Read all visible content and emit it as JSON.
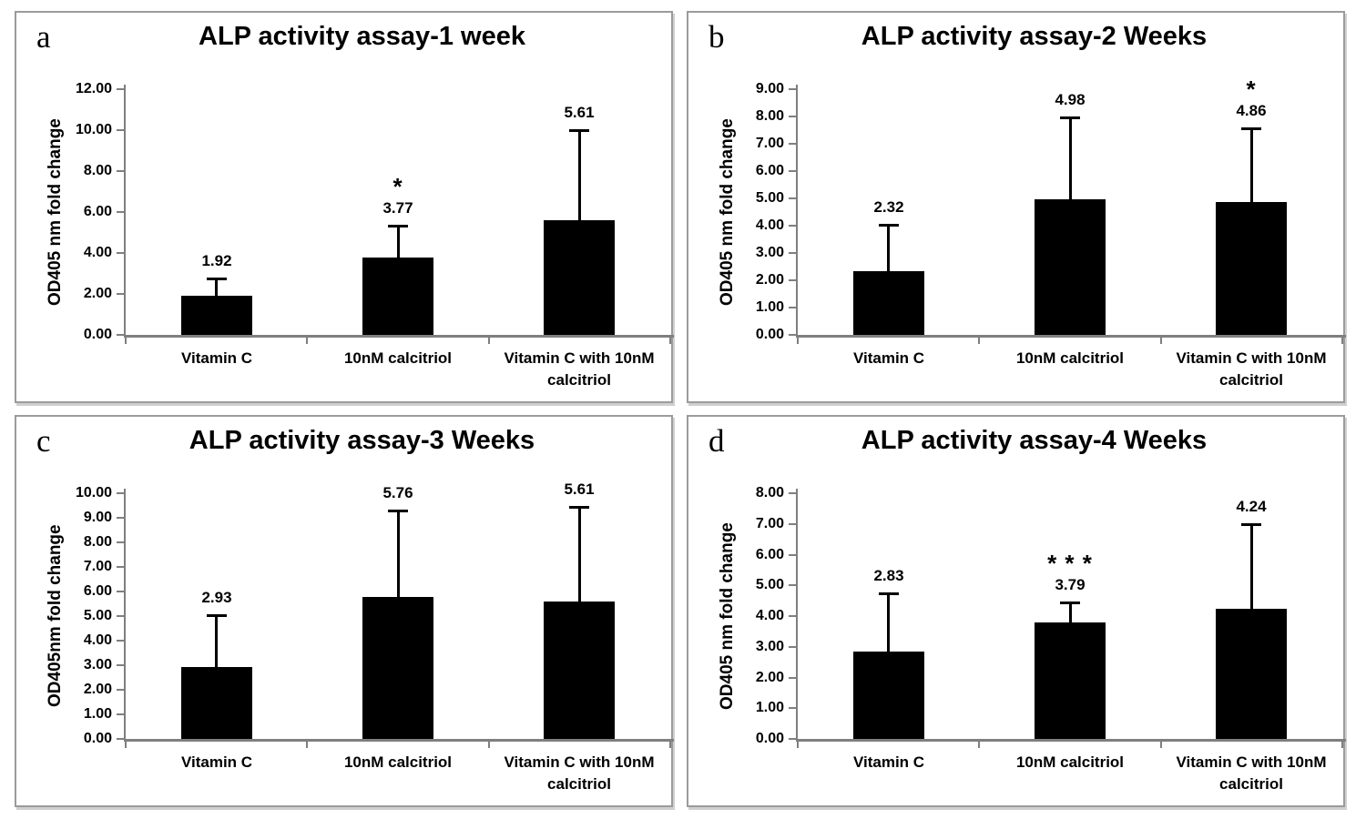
{
  "figure": {
    "background": "#ffffff",
    "bar_color": "#000000",
    "axis_color": "#7f7f7f",
    "text_color": "#000000",
    "panel_border_color": "#9b9b9b",
    "panel_shadow_color": "#cfcfcf"
  },
  "chart_data": [
    {
      "type": "bar",
      "panel_letter": "a",
      "title": "ALP activity assay-1 week",
      "xlabel": "",
      "ylabel": "OD405 nm fold change",
      "categories": [
        "Vitamin C",
        "10nM calcitriol",
        "Vitamin C with 10nM calcitriol"
      ],
      "values": [
        1.92,
        3.77,
        5.61
      ],
      "error_up": [
        0.85,
        1.55,
        4.4
      ],
      "significance": [
        "",
        "*",
        ""
      ],
      "ylim": [
        0,
        12
      ],
      "ytick_step": 2,
      "ytick_format": "0.00",
      "grid": false,
      "legend": "none"
    },
    {
      "type": "bar",
      "panel_letter": "b",
      "title": "ALP activity assay-2 Weeks",
      "xlabel": "",
      "ylabel": "OD405 nm fold change",
      "categories": [
        "Vitamin C",
        "10nM calcitriol",
        "Vitamin C with 10nM calcitriol"
      ],
      "values": [
        2.32,
        4.98,
        4.86
      ],
      "error_up": [
        1.7,
        3.0,
        2.7
      ],
      "significance": [
        "",
        "",
        "*"
      ],
      "ylim": [
        0,
        9
      ],
      "ytick_step": 1,
      "ytick_format": "0.00",
      "grid": false,
      "legend": "none"
    },
    {
      "type": "bar",
      "panel_letter": "c",
      "title": "ALP activity assay-3 Weeks",
      "xlabel": "",
      "ylabel": "OD405nm fold change",
      "categories": [
        "Vitamin C",
        "10nM calcitriol",
        "Vitamin C with 10nM calcitriol"
      ],
      "values": [
        2.93,
        5.76,
        5.61
      ],
      "error_up": [
        2.1,
        3.55,
        3.85
      ],
      "significance": [
        "",
        "",
        ""
      ],
      "ylim": [
        0,
        10
      ],
      "ytick_step": 1,
      "ytick_format": "0.00",
      "grid": false,
      "legend": "none"
    },
    {
      "type": "bar",
      "panel_letter": "d",
      "title": "ALP activity assay-4 Weeks",
      "xlabel": "",
      "ylabel": "OD405 nm fold change",
      "categories": [
        "Vitamin C",
        "10nM calcitriol",
        "Vitamin C with 10nM calcitriol"
      ],
      "values": [
        2.83,
        3.79,
        4.24
      ],
      "error_up": [
        1.9,
        0.65,
        2.75
      ],
      "significance": [
        "",
        "* * *",
        ""
      ],
      "ylim": [
        0,
        8
      ],
      "ytick_step": 1,
      "ytick_format": "0.00",
      "grid": false,
      "legend": "none"
    }
  ]
}
